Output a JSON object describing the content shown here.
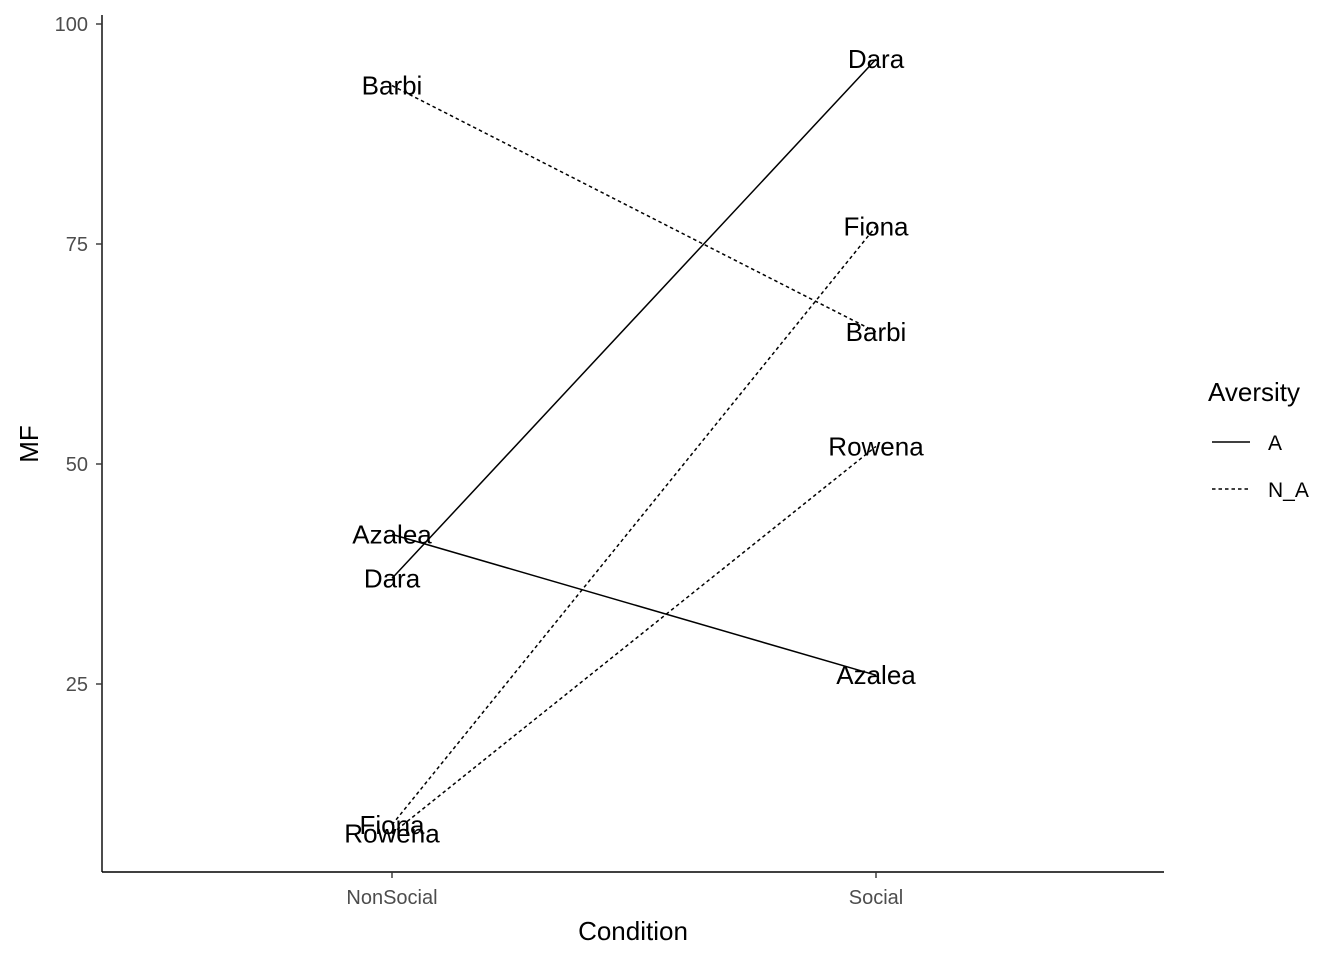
{
  "chart_data": {
    "type": "line",
    "title": "",
    "xlabel": "Condition",
    "ylabel": "MF",
    "categories": [
      "NonSocial",
      "Social"
    ],
    "y_ticks": [
      25,
      50,
      75,
      100
    ],
    "ylim": [
      4,
      101
    ],
    "grid": false,
    "legend": {
      "title": "Aversity",
      "placement": "right",
      "entries": [
        {
          "label": "A",
          "line_style": "solid"
        },
        {
          "label": "N_A",
          "line_style": "dotted"
        }
      ]
    },
    "series": [
      {
        "name": "Dara",
        "aversity": "A",
        "values": [
          37,
          96
        ]
      },
      {
        "name": "Azalea",
        "aversity": "A",
        "values": [
          42,
          26
        ]
      },
      {
        "name": "Barbi",
        "aversity": "N_A",
        "values": [
          93,
          65
        ]
      },
      {
        "name": "Fiona",
        "aversity": "N_A",
        "values": [
          9,
          77
        ]
      },
      {
        "name": "Rowena",
        "aversity": "N_A",
        "values": [
          8,
          52
        ]
      }
    ],
    "colors": {
      "line": "#000000",
      "tick_text": "#4d4d4d",
      "axis": "#000000"
    }
  }
}
